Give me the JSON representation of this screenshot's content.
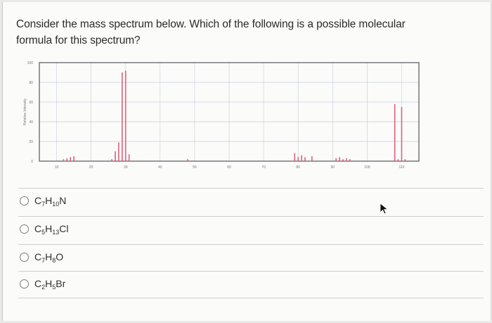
{
  "question": {
    "text": "Consider the mass spectrum below. Which of the following is a possible molecular formula for this spectrum?"
  },
  "spectrum": {
    "ylabel": "Relative Intensity",
    "y_ticks": [
      "100",
      "80",
      "60",
      "40",
      "20",
      "0"
    ],
    "x_ticks": [
      "10",
      "20",
      "30",
      "40",
      "50",
      "60",
      "70",
      "80",
      "90",
      "100",
      "110"
    ],
    "colors": {
      "peak": "#e0607a",
      "grid": "#c9ccd8",
      "frame": "#55575f"
    }
  },
  "chart_data": {
    "type": "bar",
    "xlabel": "",
    "ylabel": "Relative Intensity",
    "xlim": [
      5,
      115
    ],
    "ylim": [
      0,
      100
    ],
    "x": [
      12,
      13,
      14,
      15,
      26,
      27,
      28,
      29,
      30,
      31,
      48,
      79,
      80,
      81,
      82,
      84,
      91,
      92,
      93,
      94,
      95,
      108,
      109,
      110,
      111
    ],
    "values": [
      2,
      3,
      4,
      5,
      2,
      10,
      19,
      90,
      92,
      7,
      2,
      8,
      4,
      6,
      4,
      5,
      3,
      4,
      2,
      3,
      2,
      58,
      2,
      55,
      2
    ]
  },
  "options": [
    {
      "base": [
        "C",
        "H",
        "N"
      ],
      "subs": [
        "7",
        "10",
        ""
      ]
    },
    {
      "base": [
        "C",
        "H",
        "Cl"
      ],
      "subs": [
        "5",
        "13",
        ""
      ]
    },
    {
      "base": [
        "C",
        "H",
        "O"
      ],
      "subs": [
        "7",
        "8",
        ""
      ]
    },
    {
      "base": [
        "C",
        "H",
        "Br"
      ],
      "subs": [
        "2",
        "5",
        ""
      ]
    }
  ]
}
